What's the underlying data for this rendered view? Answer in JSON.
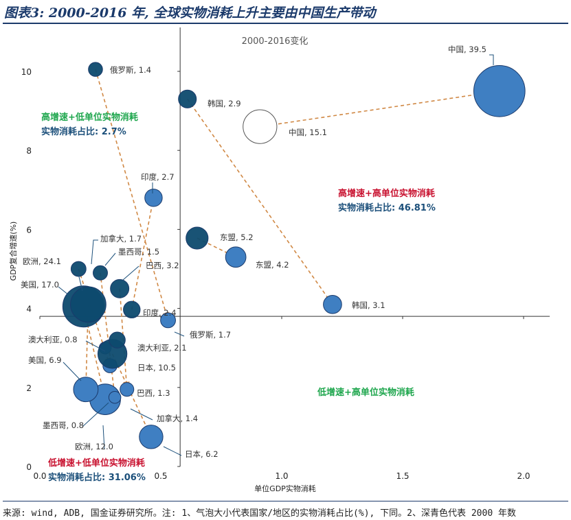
{
  "title": "图表3: 2000-2016 年, 全球实物消耗上升主要由中国生产带动",
  "source": "来源: wind, ADB, 国金证券研究所。注: 1、气泡大小代表国家/地区的实物消耗占比(%), 下同。2、深青色代表 2000 年数",
  "colors": {
    "bubble_2000": "#0d4a6e",
    "bubble_2016": "#3f7fc2",
    "arrow": "#d08844",
    "green_text": "#1ea64d",
    "red_text": "#c8102e",
    "blue_text": "#1b4f7a",
    "axis": "#333333"
  },
  "chart_data": {
    "type": "scatter",
    "subtitle": "2000-2016变化",
    "xlabel": "单位GDP实物消耗",
    "ylabel": "GDP复合增速(%)",
    "xlim": [
      0.0,
      2.1
    ],
    "ylim": [
      0,
      10.5
    ],
    "xticks": [
      "0.0",
      "0.5",
      "1.0",
      "1.5",
      "2.0"
    ],
    "yticks": [
      "0",
      "2",
      "4",
      "6",
      "8",
      "10"
    ],
    "x_axis_cross_y": 3.8,
    "y_axis_cross_x": 0.58,
    "grid": false,
    "quadrant_labels": {
      "top_left": [
        "高增速+低单位实物消耗",
        "实物消耗占比: 2.7%"
      ],
      "top_right": [
        "高增速+高单位实物消耗",
        "实物消耗占比: 46.81%"
      ],
      "bottom_right": [
        "低增速+高单位实物消耗"
      ],
      "bottom_left": [
        "低增速+低单位实物消耗",
        "实物消耗占比: 31.06%"
      ]
    },
    "series": [
      {
        "key": "y2000",
        "points": [
          {
            "country": "俄罗斯",
            "label": "俄罗斯, 1.4",
            "share": 1.4,
            "x": 0.23,
            "y": 10.05
          },
          {
            "country": "韩国",
            "label": "韩国, 2.9",
            "share": 2.9,
            "x": 0.61,
            "y": 9.3
          },
          {
            "country": "中国",
            "label": "中国, 15.1",
            "share": 15.1,
            "x": 0.91,
            "y": 8.6
          },
          {
            "country": "印度",
            "label": "印度, 2.4",
            "share": 2.4,
            "x": 0.38,
            "y": 3.97
          },
          {
            "country": "东盟",
            "label": "东盟, 5.2",
            "share": 5.2,
            "x": 0.65,
            "y": 5.78
          },
          {
            "country": "加拿大",
            "label": "加拿大, 1.7",
            "share": 1.7,
            "x": 0.16,
            "y": 5.0
          },
          {
            "country": "墨西哥",
            "label": "墨西哥, 1.5",
            "share": 1.5,
            "x": 0.25,
            "y": 4.9
          },
          {
            "country": "巴西",
            "label": "巴西, 3.2",
            "share": 3.2,
            "x": 0.33,
            "y": 4.5
          },
          {
            "country": "欧洲",
            "label": "欧洲, 24.1",
            "share": 24.1,
            "x": 0.18,
            "y": 4.05
          },
          {
            "country": "美国",
            "label": "美国, 17.0",
            "share": 17.0,
            "x": 0.2,
            "y": 4.1
          },
          {
            "country": "澳大利亚",
            "label": "澳大利亚, 2.1",
            "share": 2.1,
            "x": 0.32,
            "y": 3.2
          },
          {
            "country": "日本",
            "label": "日本, 10.5",
            "share": 10.5,
            "x": 0.3,
            "y": 2.85
          }
        ]
      },
      {
        "key": "y2016",
        "points": [
          {
            "country": "中国",
            "label": "中国, 39.5",
            "share": 39.5,
            "x": 1.9,
            "y": 9.5
          },
          {
            "country": "印度",
            "label": "印度, 2.7",
            "share": 2.7,
            "x": 0.47,
            "y": 6.8
          },
          {
            "country": "东盟",
            "label": "东盟, 4.2",
            "share": 4.2,
            "x": 0.81,
            "y": 5.3
          },
          {
            "country": "韩国",
            "label": "韩国, 3.1",
            "share": 3.1,
            "x": 1.21,
            "y": 4.1
          },
          {
            "country": "俄罗斯",
            "label": "俄罗斯, 1.7",
            "share": 1.7,
            "x": 0.53,
            "y": 3.7
          },
          {
            "country": "澳大利亚",
            "label": "澳大利亚, 0.8",
            "share": 0.8,
            "x": 0.27,
            "y": 3.0
          },
          {
            "country": "日本",
            "label": "日本, 6.2",
            "share": 6.2,
            "x": 0.46,
            "y": 0.75
          },
          {
            "country": "美国",
            "label": "美国, 6.9",
            "share": 6.9,
            "x": 0.19,
            "y": 1.95
          },
          {
            "country": "墨西哥",
            "label": "墨西哥, 0.8",
            "share": 0.8,
            "x": 0.31,
            "y": 1.75
          },
          {
            "country": "欧洲",
            "label": "欧洲, 12.0",
            "share": 12.0,
            "x": 0.27,
            "y": 1.7
          },
          {
            "country": "巴西",
            "label": "巴西, 1.3",
            "share": 1.3,
            "x": 0.36,
            "y": 1.95
          },
          {
            "country": "加拿大",
            "label": "加拿大, 1.4",
            "share": 1.4,
            "x": 0.29,
            "y": 2.55
          }
        ]
      }
    ]
  }
}
